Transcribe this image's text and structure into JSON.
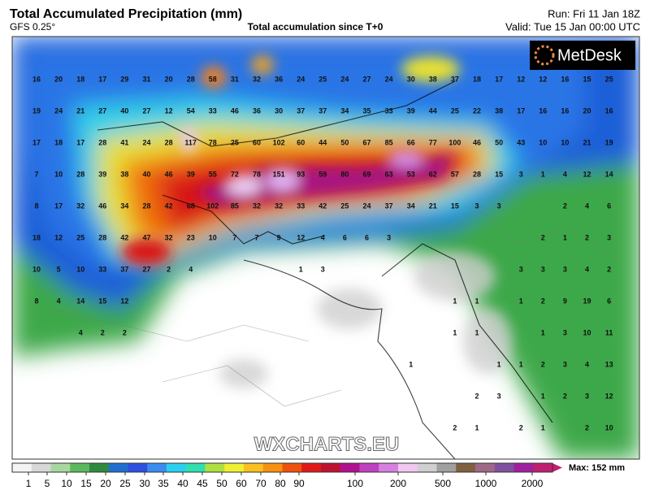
{
  "header": {
    "title": "Total Accumulated Precipitation (mm)",
    "model": "GFS 0.25°",
    "subtitle": "Total accumulation since T+0",
    "run": "Run: Fri 11 Jan 18Z",
    "valid": "Valid: Tue 15 Jan 00:00 UTC"
  },
  "brand": "MetDesk",
  "watermark": "WXCHARTS.EU",
  "map_values": [
    [
      16,
      20,
      18,
      17,
      29,
      31,
      20,
      28,
      58,
      31,
      32,
      36,
      24,
      25,
      24,
      27,
      24,
      30,
      38,
      37,
      18,
      17,
      12,
      12,
      16,
      15,
      25
    ],
    [
      19,
      24,
      21,
      27,
      40,
      27,
      12,
      54,
      33,
      46,
      36,
      30,
      37,
      37,
      34,
      35,
      33,
      39,
      44,
      25,
      22,
      38,
      17,
      16,
      16,
      20,
      16
    ],
    [
      17,
      18,
      17,
      28,
      41,
      24,
      28,
      117,
      78,
      25,
      60,
      102,
      60,
      44,
      50,
      67,
      85,
      66,
      77,
      100,
      46,
      50,
      43,
      10,
      10,
      21,
      19
    ],
    [
      7,
      10,
      28,
      39,
      38,
      40,
      46,
      39,
      55,
      72,
      78,
      151,
      93,
      59,
      80,
      69,
      63,
      53,
      62,
      57,
      28,
      15,
      3,
      1,
      4,
      12,
      14
    ],
    [
      8,
      17,
      32,
      46,
      34,
      28,
      42,
      68,
      102,
      85,
      32,
      32,
      33,
      42,
      25,
      24,
      37,
      34,
      21,
      15,
      3,
      3,
      null,
      null,
      2,
      4,
      6
    ],
    [
      18,
      12,
      25,
      28,
      42,
      47,
      32,
      23,
      10,
      7,
      7,
      9,
      12,
      4,
      6,
      6,
      3,
      null,
      null,
      null,
      null,
      null,
      null,
      2,
      1,
      2,
      3
    ],
    [
      10,
      5,
      10,
      33,
      37,
      27,
      2,
      4,
      null,
      null,
      null,
      null,
      1,
      3,
      null,
      null,
      null,
      null,
      null,
      null,
      null,
      null,
      3,
      3,
      3,
      4,
      2
    ],
    [
      8,
      4,
      14,
      15,
      12,
      null,
      null,
      null,
      null,
      null,
      null,
      null,
      null,
      null,
      null,
      null,
      null,
      null,
      null,
      1,
      1,
      null,
      1,
      2,
      9,
      19,
      6
    ],
    [
      null,
      null,
      4,
      2,
      2,
      null,
      null,
      null,
      null,
      null,
      null,
      null,
      null,
      null,
      null,
      null,
      null,
      null,
      null,
      1,
      1,
      null,
      null,
      1,
      3,
      10,
      11
    ],
    [
      null,
      null,
      null,
      null,
      null,
      null,
      null,
      null,
      null,
      null,
      null,
      null,
      null,
      null,
      null,
      null,
      null,
      1,
      null,
      null,
      null,
      1,
      1,
      2,
      3,
      4,
      13
    ],
    [
      null,
      null,
      null,
      null,
      null,
      null,
      null,
      null,
      null,
      null,
      null,
      null,
      null,
      null,
      null,
      null,
      null,
      null,
      null,
      null,
      2,
      3,
      null,
      1,
      2,
      3,
      12
    ],
    [
      null,
      null,
      null,
      null,
      null,
      null,
      null,
      null,
      null,
      null,
      null,
      null,
      null,
      null,
      null,
      null,
      null,
      null,
      null,
      2,
      1,
      null,
      2,
      1,
      null,
      2,
      10
    ]
  ],
  "legend": {
    "ticks": [
      1,
      5,
      10,
      15,
      20,
      25,
      30,
      35,
      40,
      45,
      50,
      60,
      70,
      80,
      90,
      100,
      200,
      500,
      1000,
      2000
    ],
    "colors": [
      "#f4f4f4",
      "#d8d8d8",
      "#a8d8a0",
      "#5cb85c",
      "#2e8b3e",
      "#1f6fd0",
      "#2f4fe0",
      "#3a8cf0",
      "#2ad0f0",
      "#30e0b0",
      "#b0e040",
      "#f0f030",
      "#f8c020",
      "#f89010",
      "#f05010",
      "#e01818",
      "#c01030",
      "#b01090",
      "#c040c0",
      "#d880e0",
      "#f0c8f0",
      "#d0d0d0",
      "#a0a0a0",
      "#806040",
      "#a06888",
      "#8050a0",
      "#a020a0",
      "#c02070"
    ],
    "max_label": "Max: 152 mm"
  }
}
